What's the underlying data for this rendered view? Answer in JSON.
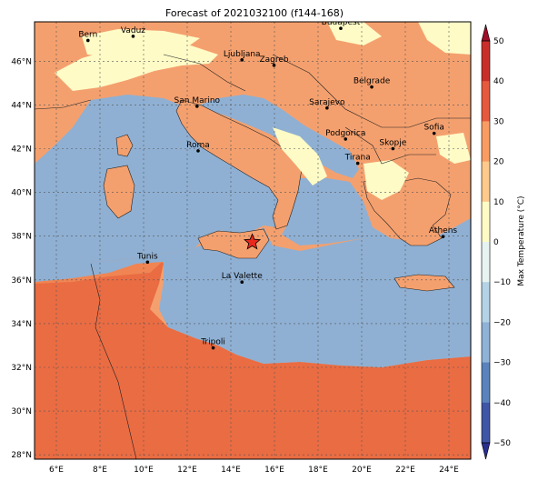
{
  "title": "Forecast of 2021032100 (f144-168)",
  "lat_ticks": [
    "46°N",
    "44°N",
    "42°N",
    "40°N",
    "38°N",
    "36°N",
    "34°N",
    "32°N",
    "30°N",
    "28°N"
  ],
  "lon_ticks": [
    "6°E",
    "8°E",
    "10°E",
    "12°E",
    "14°E",
    "16°E",
    "18°E",
    "20°E",
    "22°E",
    "24°E"
  ],
  "cities": [
    {
      "name": "Bern",
      "lon": 7.45,
      "lat": 46.95
    },
    {
      "name": "Vaduz",
      "lon": 9.52,
      "lat": 47.14
    },
    {
      "name": "Budapest",
      "lon": 19.04,
      "lat": 47.5
    },
    {
      "name": "Ljubljana",
      "lon": 14.51,
      "lat": 46.06
    },
    {
      "name": "Zagreb",
      "lon": 15.98,
      "lat": 45.81
    },
    {
      "name": "Belgrade",
      "lon": 20.46,
      "lat": 44.82
    },
    {
      "name": "San Marino",
      "lon": 12.45,
      "lat": 43.94
    },
    {
      "name": "Sarajevo",
      "lon": 18.41,
      "lat": 43.86
    },
    {
      "name": "Sofia",
      "lon": 23.32,
      "lat": 42.7
    },
    {
      "name": "Roma",
      "lon": 12.5,
      "lat": 41.9
    },
    {
      "name": "Podgorica",
      "lon": 19.26,
      "lat": 42.44
    },
    {
      "name": "Skopje",
      "lon": 21.43,
      "lat": 42.0
    },
    {
      "name": "Tirana",
      "lon": 19.82,
      "lat": 41.33
    },
    {
      "name": "Athens",
      "lon": 23.73,
      "lat": 37.98
    },
    {
      "name": "Tunis",
      "lon": 10.18,
      "lat": 36.81
    },
    {
      "name": "La Valette",
      "lon": 14.51,
      "lat": 35.9
    },
    {
      "name": "Tripoli",
      "lon": 13.19,
      "lat": 32.89
    }
  ],
  "marker": {
    "name": "star",
    "lon": 14.98,
    "lat": 37.72
  },
  "colorbar": {
    "label": "Max Temperature (°C)",
    "ticks": [
      "50",
      "40",
      "30",
      "20",
      "10",
      "0",
      "−10",
      "−20",
      "−30",
      "−40",
      "−50"
    ],
    "colors": [
      "#2a2f8f",
      "#3f55a6",
      "#5a83bd",
      "#8fb2d6",
      "#b5d3e6",
      "#e6f3f0",
      "#fefbc6",
      "#fdc98c",
      "#f89c64",
      "#e5593e",
      "#c92e2a",
      "#9e0f2a"
    ]
  }
}
